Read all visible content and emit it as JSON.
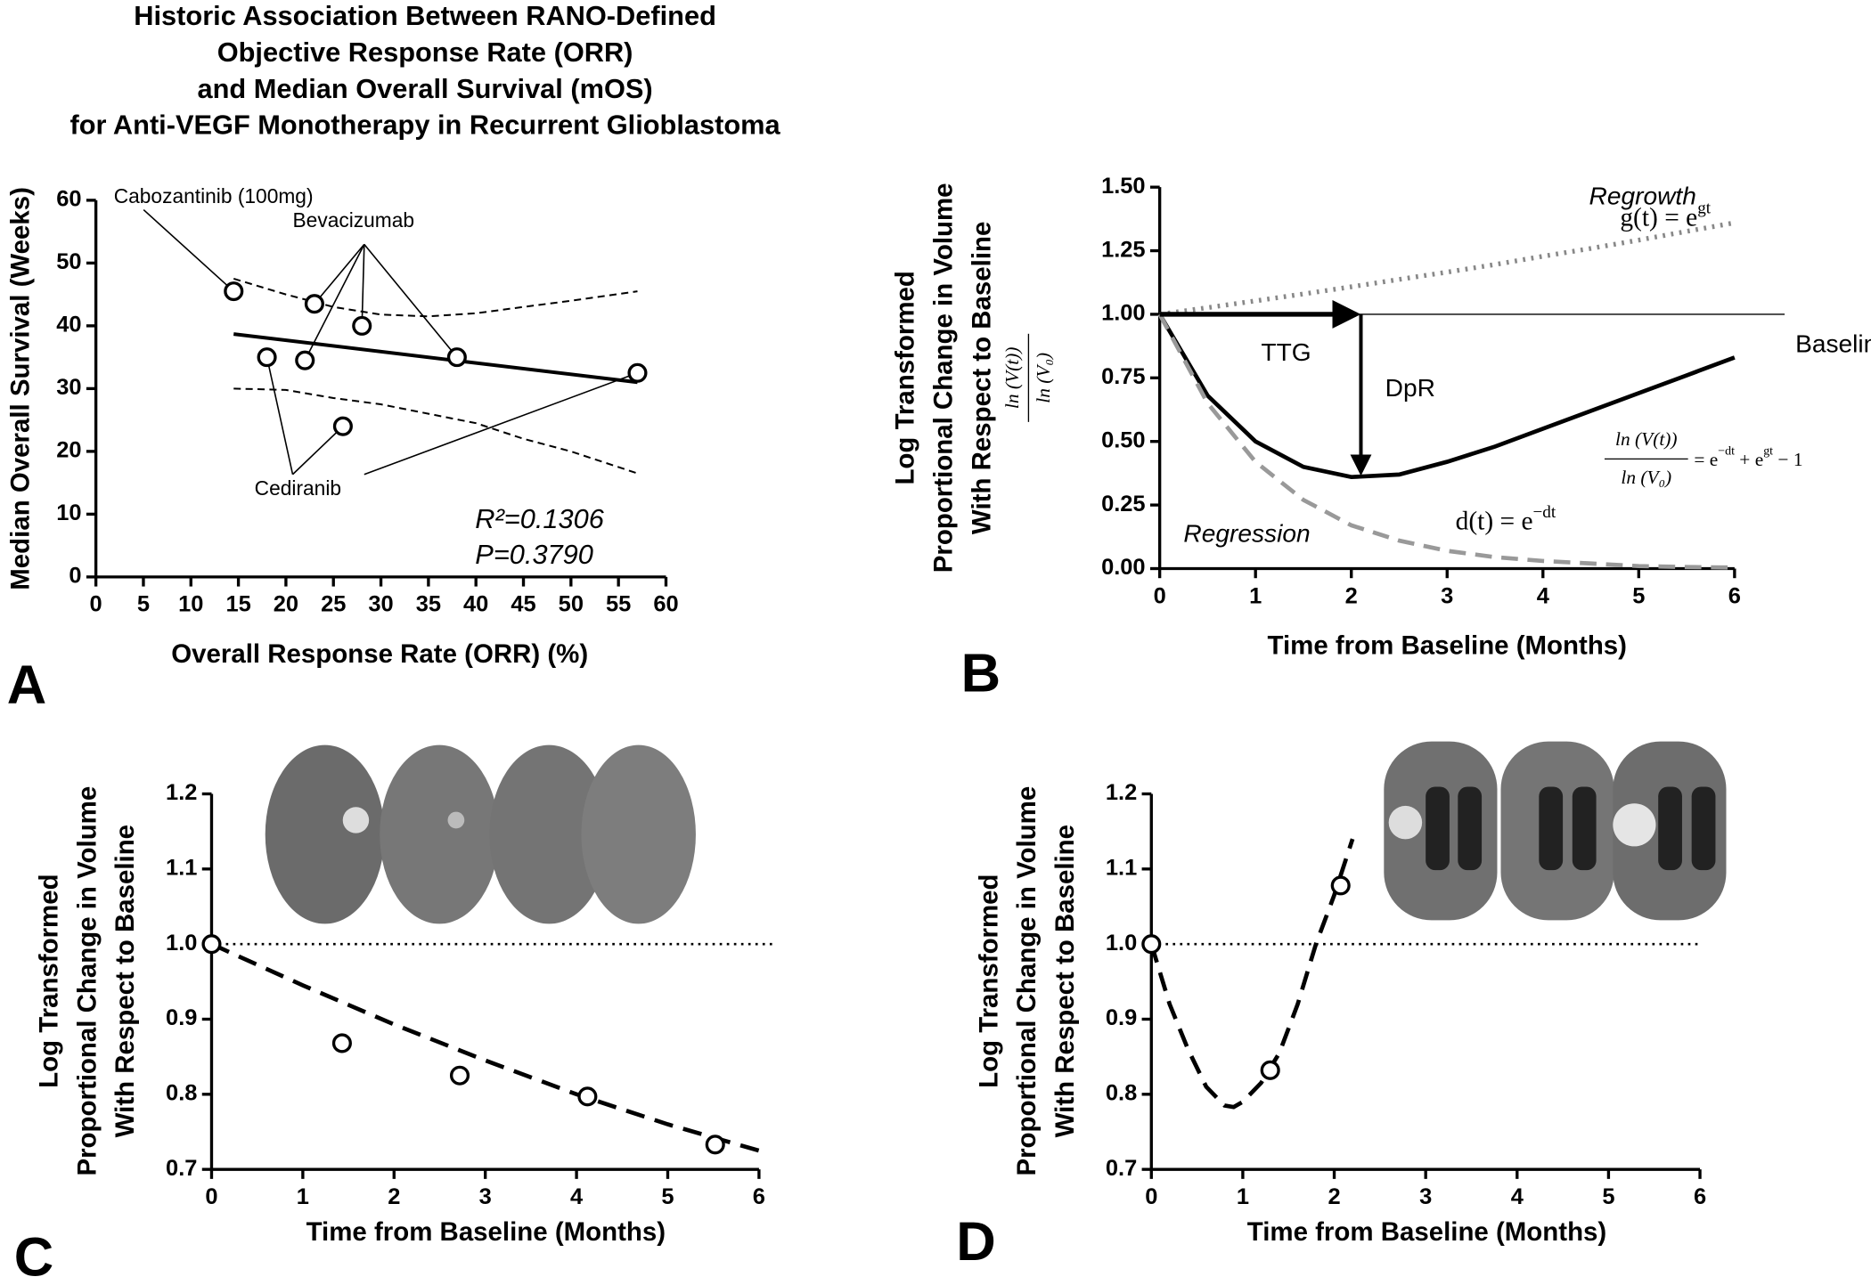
{
  "chart_data": [
    {
      "type": "scatter",
      "panel_label": "A",
      "title": [
        "Historic Association Between RANO-Defined",
        "Objective Response Rate (ORR)",
        "and Median Overall Survival (mOS)",
        "for Anti-VEGF Monotherapy in Recurrent Glioblastoma"
      ],
      "x_label": "Overall Response Rate (ORR) (%)",
      "y_label": [
        "Median Overall Survival (Weeks)"
      ],
      "xlim": [
        0,
        60
      ],
      "xticks": [
        0,
        5,
        10,
        15,
        20,
        25,
        30,
        35,
        40,
        45,
        50,
        55,
        60
      ],
      "ylim": [
        0,
        60
      ],
      "yticks": [
        0,
        10,
        20,
        30,
        40,
        50,
        60
      ],
      "x": [
        14.5,
        23,
        28,
        38,
        18,
        22,
        26,
        57
      ],
      "y": [
        45.5,
        43.5,
        40,
        35,
        35,
        34.5,
        24,
        32.5
      ],
      "fit_line": {
        "x": [
          14.5,
          57
        ],
        "y": [
          38.7,
          31
        ]
      },
      "upper_band": {
        "x": [
          14.5,
          20,
          25,
          30,
          35,
          40,
          45,
          50,
          57
        ],
        "y": [
          47.5,
          45,
          43,
          41.8,
          41.5,
          42,
          43,
          44,
          45.5
        ]
      },
      "lower_band": {
        "x": [
          14.5,
          20,
          25,
          30,
          35,
          40,
          45,
          50,
          57
        ],
        "y": [
          30,
          29.8,
          28.5,
          27.5,
          26,
          24.5,
          22,
          20,
          16.5
        ]
      },
      "annotations": [
        "Cabozantinib (100mg)",
        "Bevacizumab",
        "Cediranib"
      ],
      "stats": [
        "R²=0.1306",
        "P=0.3790"
      ]
    },
    {
      "type": "line",
      "panel_label": "B",
      "x_label": "Time from Baseline (Months)",
      "y_label": [
        "Log Transformed",
        "Proportional Change in Volume",
        "With Respect to Baseline"
      ],
      "y_formula": {
        "num": "ln (V(t))",
        "den": "ln (V₀)"
      },
      "xlim": [
        0,
        6
      ],
      "xticks": [
        0,
        1,
        2,
        3,
        4,
        5,
        6
      ],
      "ylim": [
        0,
        1.5
      ],
      "yticks": [
        {
          "value": 0,
          "label": "0.00"
        },
        {
          "value": 0.25,
          "label": "0.25"
        },
        {
          "value": 0.5,
          "label": "0.50"
        },
        {
          "value": 0.75,
          "label": "0.75"
        },
        {
          "value": 1,
          "label": "1.00"
        },
        {
          "value": 1.25,
          "label": "1.25"
        },
        {
          "value": 1.5,
          "label": "1.50"
        }
      ],
      "x": [
        0,
        0.5,
        1,
        1.5,
        2,
        2.5,
        3,
        3.5,
        4,
        4.5,
        5,
        5.5,
        6
      ],
      "series": [
        {
          "color": "#000000",
          "values": [
            1,
            0.68,
            0.5,
            0.4,
            0.36,
            0.37,
            0.42,
            0.48,
            0.55,
            0.62,
            0.69,
            0.76,
            0.83
          ]
        },
        {
          "color": "#999999",
          "values": [
            1,
            0.65,
            0.42,
            0.27,
            0.17,
            0.11,
            0.07,
            0.045,
            0.03,
            0.02,
            0.01,
            0.006,
            0.004
          ]
        },
        {
          "color": "#888888",
          "values": [
            1,
            1.026,
            1.053,
            1.08,
            1.108,
            1.137,
            1.166,
            1.196,
            1.228,
            1.259,
            1.292,
            1.326,
            1.36
          ]
        }
      ],
      "baseline": {
        "label": "Baseline",
        "value": 1
      },
      "ttg": {
        "label": "TTG",
        "x": 2.1
      },
      "dpr": {
        "label": "DpR",
        "y": 0.36
      },
      "regrowth_label": "Regrowth",
      "regression_label": "Regression",
      "g_formula": {
        "lhs": "g(t) = e",
        "sup": "gt"
      },
      "d_formula": {
        "lhs": "d(t) = e",
        "sup": "−dt"
      },
      "model_formula": {
        "num": "ln (V(t))",
        "den": "ln (V₀)",
        "rhs1": "= e",
        "sup1": "−dt",
        "rhs2": " + e",
        "sup2": "gt",
        "rhs3": " − 1"
      }
    },
    {
      "type": "scatter",
      "panel_label": "C",
      "x_label": "Time from Baseline (Months)",
      "y_label": [
        "Log Transformed",
        "Proportional Change in Volume",
        "With Respect to Baseline"
      ],
      "xlim": [
        0,
        6
      ],
      "xticks": [
        0,
        1,
        2,
        3,
        4,
        5,
        6
      ],
      "ylim": [
        0.7,
        1.2
      ],
      "yticks": [
        0.7,
        0.8,
        0.9,
        {
          "value": 1,
          "label": "1.0"
        },
        1.1,
        1.2
      ],
      "x": [
        0,
        1.43,
        2.72,
        4.12,
        5.52
      ],
      "y": [
        1,
        0.868,
        0.825,
        0.797,
        0.733
      ],
      "fit_line": {
        "x": [
          0,
          1,
          2,
          3,
          4,
          5,
          6
        ],
        "y": [
          1,
          0.945,
          0.893,
          0.845,
          0.8,
          0.76,
          0.725
        ]
      },
      "reference": 1
    },
    {
      "type": "scatter",
      "panel_label": "D",
      "x_label": "Time from Baseline (Months)",
      "y_label": [
        "Log Transformed",
        "Proportional Change in Volume",
        "With Respect to Baseline"
      ],
      "xlim": [
        0,
        6
      ],
      "xticks": [
        0,
        1,
        2,
        3,
        4,
        5,
        6
      ],
      "ylim": [
        0.7,
        1.2
      ],
      "yticks": [
        0.7,
        0.8,
        0.9,
        {
          "value": 1,
          "label": "1.0"
        },
        1.1,
        1.2
      ],
      "x": [
        0,
        1.3,
        2.07
      ],
      "y": [
        1,
        0.832,
        1.078
      ],
      "fit_line": {
        "x": [
          0,
          0.2,
          0.4,
          0.6,
          0.8,
          0.9,
          1,
          1.2,
          1.4,
          1.6,
          1.8,
          2,
          2.2
        ],
        "y": [
          1,
          0.92,
          0.86,
          0.81,
          0.785,
          0.783,
          0.79,
          0.815,
          0.855,
          0.92,
          1,
          1.065,
          1.14
        ]
      },
      "reference": 1
    }
  ]
}
